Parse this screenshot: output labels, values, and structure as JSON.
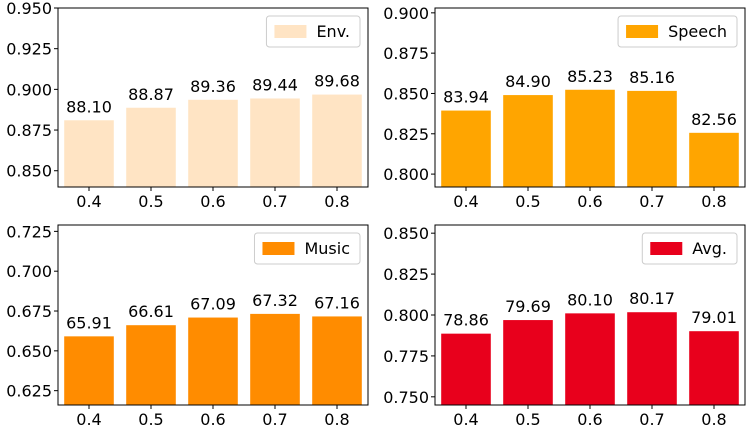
{
  "chart_data": [
    {
      "type": "bar",
      "title": "",
      "xlabel": "",
      "ylabel": "",
      "categories": [
        "0.4",
        "0.5",
        "0.6",
        "0.7",
        "0.8"
      ],
      "values": [
        0.881,
        0.8887,
        0.8936,
        0.8944,
        0.8968
      ],
      "data_labels": [
        "88.10",
        "88.87",
        "89.36",
        "89.44",
        "89.68"
      ],
      "yticks": [
        0.85,
        0.875,
        0.9,
        0.925,
        0.95
      ],
      "ytick_labels": [
        "0.850",
        "0.875",
        "0.900",
        "0.925",
        "0.950"
      ],
      "ylim": [
        0.84,
        0.95
      ],
      "legend": "Env.",
      "legend_position": "top-right",
      "color": "#FFE4C4"
    },
    {
      "type": "bar",
      "title": "",
      "xlabel": "",
      "ylabel": "",
      "categories": [
        "0.4",
        "0.5",
        "0.6",
        "0.7",
        "0.8"
      ],
      "values": [
        0.8394,
        0.849,
        0.8523,
        0.8516,
        0.8256
      ],
      "data_labels": [
        "83.94",
        "84.90",
        "85.23",
        "85.16",
        "82.56"
      ],
      "yticks": [
        0.8,
        0.825,
        0.85,
        0.875,
        0.9
      ],
      "ytick_labels": [
        "0.800",
        "0.825",
        "0.850",
        "0.875",
        "0.900"
      ],
      "ylim": [
        0.792,
        0.903
      ],
      "legend": "Speech",
      "legend_position": "top-right",
      "color": "#FFA500"
    },
    {
      "type": "bar",
      "title": "",
      "xlabel": "",
      "ylabel": "",
      "categories": [
        "0.4",
        "0.5",
        "0.6",
        "0.7",
        "0.8"
      ],
      "values": [
        0.6591,
        0.6661,
        0.6709,
        0.6732,
        0.6716
      ],
      "data_labels": [
        "65.91",
        "66.61",
        "67.09",
        "67.32",
        "67.16"
      ],
      "yticks": [
        0.625,
        0.65,
        0.675,
        0.7,
        0.725
      ],
      "ytick_labels": [
        "0.625",
        "0.650",
        "0.675",
        "0.700",
        "0.725"
      ],
      "ylim": [
        0.616,
        0.729
      ],
      "legend": "Music",
      "legend_position": "top-right",
      "color": "#FF8C00"
    },
    {
      "type": "bar",
      "title": "",
      "xlabel": "",
      "ylabel": "",
      "categories": [
        "0.4",
        "0.5",
        "0.6",
        "0.7",
        "0.8"
      ],
      "values": [
        0.7886,
        0.7969,
        0.801,
        0.8017,
        0.7901
      ],
      "data_labels": [
        "78.86",
        "79.69",
        "80.10",
        "80.17",
        "79.01"
      ],
      "yticks": [
        0.75,
        0.775,
        0.8,
        0.825,
        0.85
      ],
      "ytick_labels": [
        "0.750",
        "0.775",
        "0.800",
        "0.825",
        "0.850"
      ],
      "ylim": [
        0.745,
        0.855
      ],
      "legend": "Avg.",
      "legend_position": "top-right",
      "color": "#E8001C"
    }
  ]
}
